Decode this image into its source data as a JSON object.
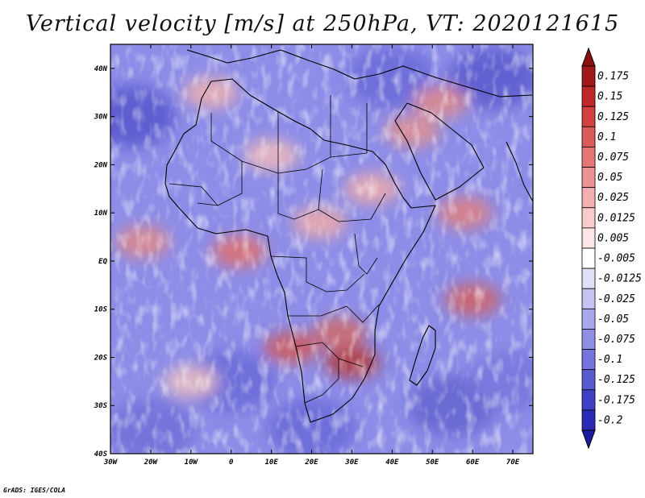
{
  "title": "Vertical velocity [m/s] at 250hPa, VT: 2020121615",
  "footer": "GrADS: IGES/COLA",
  "map": {
    "lon_range": [
      -30,
      75
    ],
    "lat_range": [
      -40,
      45
    ],
    "lat_ticks": [
      {
        "value": 40,
        "label": "40N"
      },
      {
        "value": 30,
        "label": "30N"
      },
      {
        "value": 20,
        "label": "20N"
      },
      {
        "value": 10,
        "label": "10N"
      },
      {
        "value": 0,
        "label": "EQ"
      },
      {
        "value": -10,
        "label": "10S"
      },
      {
        "value": -20,
        "label": "20S"
      },
      {
        "value": -30,
        "label": "30S"
      },
      {
        "value": -40,
        "label": "40S"
      }
    ],
    "lon_ticks": [
      {
        "value": -30,
        "label": "30W"
      },
      {
        "value": -20,
        "label": "20W"
      },
      {
        "value": -10,
        "label": "10W"
      },
      {
        "value": 0,
        "label": "0"
      },
      {
        "value": 10,
        "label": "10E"
      },
      {
        "value": 20,
        "label": "20E"
      },
      {
        "value": 30,
        "label": "30E"
      },
      {
        "value": 40,
        "label": "40E"
      },
      {
        "value": 50,
        "label": "50E"
      },
      {
        "value": 60,
        "label": "60E"
      },
      {
        "value": 70,
        "label": "70E"
      }
    ],
    "background_color": "#8d8de8",
    "ascent_regions": [
      {
        "lon": 15,
        "lat": -18,
        "color": "#d05a5a"
      },
      {
        "lon": 30,
        "lat": -21,
        "color": "#b53a3a"
      },
      {
        "lon": 27,
        "lat": -15,
        "color": "#d06a6a"
      },
      {
        "lon": -22,
        "lat": 4,
        "color": "#e08888"
      },
      {
        "lon": 2,
        "lat": 2,
        "color": "#e07070"
      },
      {
        "lon": 60,
        "lat": -8,
        "color": "#d06060"
      },
      {
        "lon": 58,
        "lat": 10,
        "color": "#e08080"
      },
      {
        "lon": 45,
        "lat": 27,
        "color": "#e09090"
      },
      {
        "lon": 22,
        "lat": 8,
        "color": "#eeaaaa"
      },
      {
        "lon": -5,
        "lat": 35,
        "color": "#eeb0b0"
      },
      {
        "lon": 52,
        "lat": 33,
        "color": "#e08a8a"
      },
      {
        "lon": 35,
        "lat": 15,
        "color": "#eeaaaa"
      },
      {
        "lon": 10,
        "lat": 22,
        "color": "#f0b8b8"
      },
      {
        "lon": -10,
        "lat": -25,
        "color": "#eec0c0"
      }
    ],
    "descent_regions": [
      {
        "lon": -25,
        "lat": 30,
        "color": "#5555cc"
      },
      {
        "lon": 0,
        "lat": -25,
        "color": "#6a6ad8"
      },
      {
        "lon": 40,
        "lat": 38,
        "color": "#6a6ad8"
      },
      {
        "lon": 55,
        "lat": -30,
        "color": "#6464d0"
      },
      {
        "lon": 65,
        "lat": 38,
        "color": "#5a5acc"
      },
      {
        "lon": -20,
        "lat": -35,
        "color": "#7070d8"
      },
      {
        "lon": 20,
        "lat": -35,
        "color": "#6a6ad8"
      },
      {
        "lon": 70,
        "lat": -25,
        "color": "#7878dd"
      }
    ]
  },
  "colorbar": {
    "levels": [
      {
        "label": "0.175",
        "color": "#a01818"
      },
      {
        "label": "0.15",
        "color": "#c02828"
      },
      {
        "label": "0.125",
        "color": "#d24040"
      },
      {
        "label": "0.1",
        "color": "#dc5a5a"
      },
      {
        "label": "0.075",
        "color": "#e47676"
      },
      {
        "label": "0.05",
        "color": "#ec9494"
      },
      {
        "label": "0.025",
        "color": "#f2b0b0"
      },
      {
        "label": "0.0125",
        "color": "#f8cccc"
      },
      {
        "label": "0.005",
        "color": "#fce6e6"
      },
      {
        "label": "-0.005",
        "color": "#ffffff"
      },
      {
        "label": "-0.0125",
        "color": "#e0e0f8"
      },
      {
        "label": "-0.025",
        "color": "#c4c4f2"
      },
      {
        "label": "-0.05",
        "color": "#a8a8ec"
      },
      {
        "label": "-0.075",
        "color": "#8e8ee4"
      },
      {
        "label": "-0.1",
        "color": "#7474dc"
      },
      {
        "label": "-0.125",
        "color": "#5a5ad0"
      },
      {
        "label": "-0.175",
        "color": "#4040c4"
      },
      {
        "label": "-0.2",
        "color": "#2a2ab4"
      }
    ],
    "top_color": "#8a1010",
    "bottom_color": "#1a1aa0"
  }
}
